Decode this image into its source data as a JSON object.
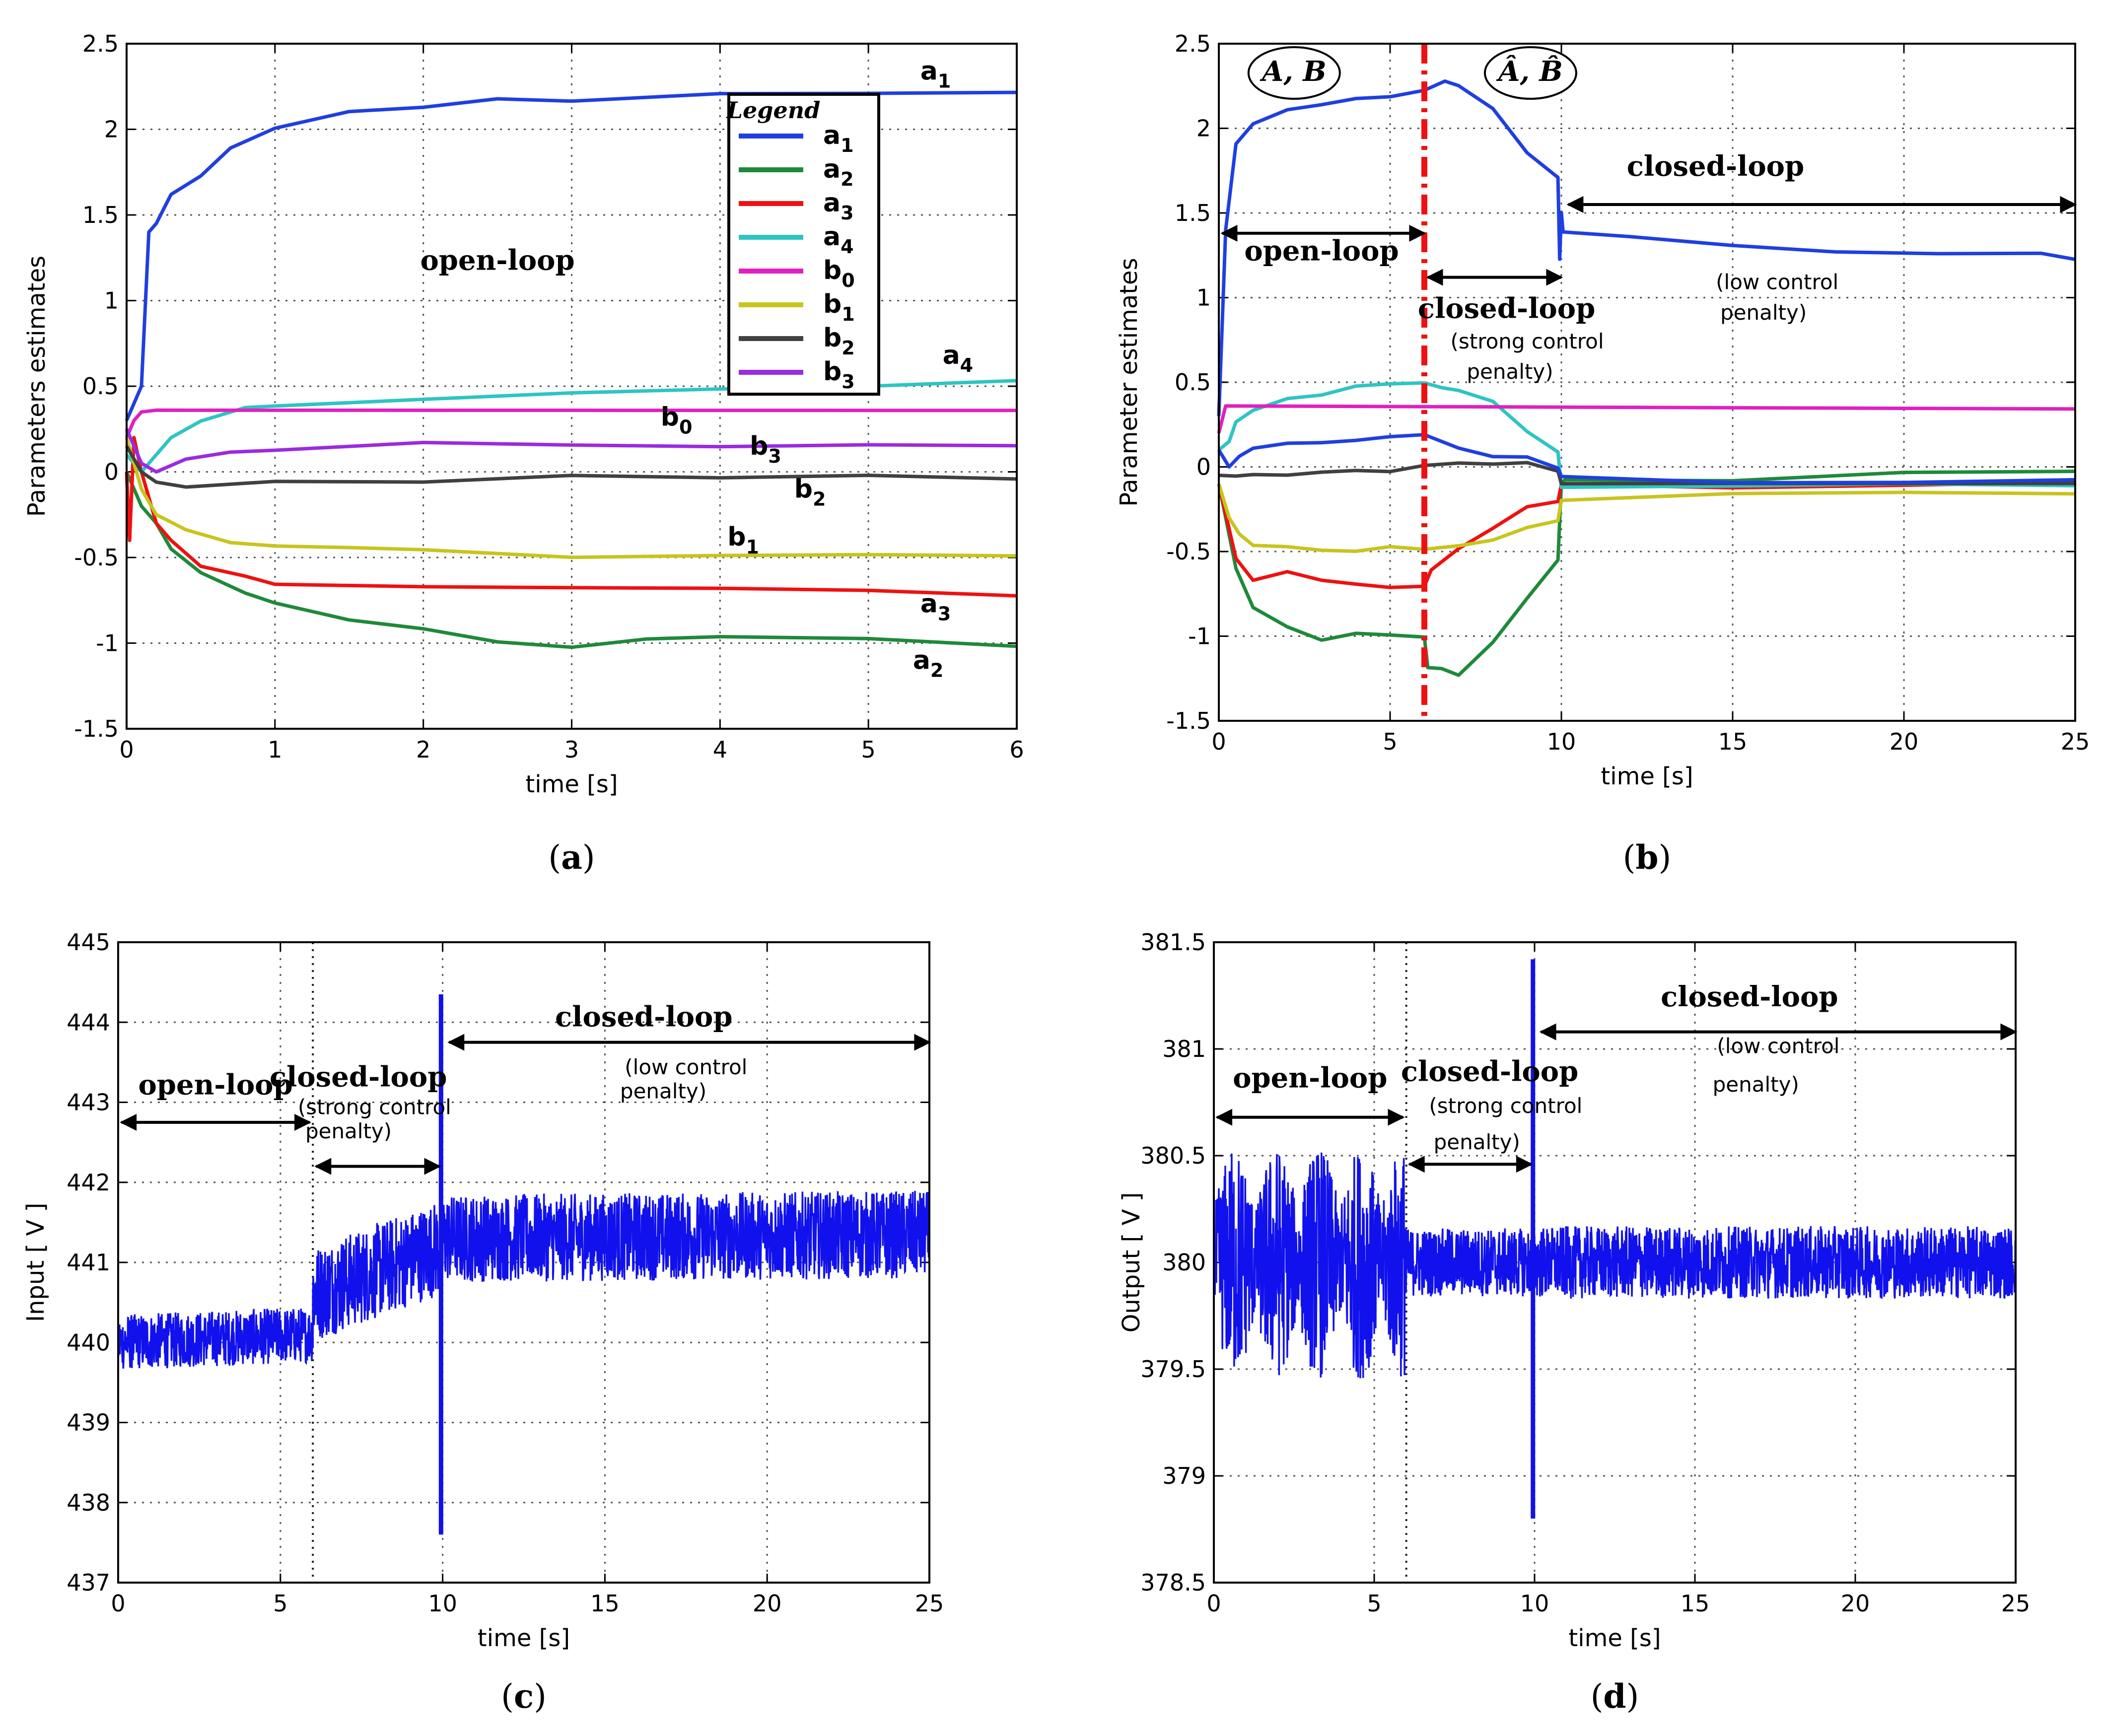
{
  "chart_data": [
    {
      "id": "a",
      "type": "line",
      "caption": "(a)",
      "xlabel": "time [s]",
      "ylabel": "Parameters estimates",
      "xlim": [
        0,
        6
      ],
      "ylim": [
        -1.5,
        2.5
      ],
      "xticks": [
        "0",
        "1",
        "2",
        "3",
        "4",
        "5",
        "6"
      ],
      "yticks": [
        "-1.5",
        "-1",
        "-0.5",
        "0",
        "0.5",
        "1",
        "1.5",
        "2",
        "2.5"
      ],
      "grid": true,
      "legend": {
        "title": "Legend",
        "entries": [
          {
            "base": "a",
            "sub": "1",
            "color": "#1f3fe0"
          },
          {
            "base": "a",
            "sub": "2",
            "color": "#1e8a3a"
          },
          {
            "base": "a",
            "sub": "3",
            "color": "#ee1111"
          },
          {
            "base": "a",
            "sub": "4",
            "color": "#2ec4c4"
          },
          {
            "base": "b",
            "sub": "0",
            "color": "#e020c0"
          },
          {
            "base": "b",
            "sub": "1",
            "color": "#c8c41e"
          },
          {
            "base": "b",
            "sub": "2",
            "color": "#404040"
          },
          {
            "base": "b",
            "sub": "3",
            "color": "#9a2be0"
          }
        ]
      },
      "annotations": [
        {
          "text": "open-loop",
          "x": 2.5,
          "y": 1.18
        }
      ],
      "series": [
        {
          "name": "a1",
          "base": "a",
          "sub": "1",
          "color": "#1f3fe0",
          "label_x": 5.35,
          "label_y": 2.29,
          "x": [
            0,
            0.1,
            0.15,
            0.2,
            0.3,
            0.5,
            0.7,
            1,
            1.5,
            2,
            2.5,
            3,
            4,
            5,
            6
          ],
          "y": [
            0.3,
            0.5,
            1.4,
            1.45,
            1.62,
            1.72,
            1.9,
            2.0,
            2.08,
            2.12,
            2.17,
            2.18,
            2.19,
            2.2,
            2.2
          ]
        },
        {
          "name": "a2",
          "base": "a",
          "sub": "2",
          "color": "#1e8a3a",
          "label_x": 5.3,
          "label_y": -1.15,
          "x": [
            0,
            0.1,
            0.2,
            0.3,
            0.5,
            0.8,
            1,
            1.5,
            2,
            2.5,
            3,
            3.5,
            4,
            5,
            6
          ],
          "y": [
            0.0,
            -0.2,
            -0.3,
            -0.45,
            -0.6,
            -0.7,
            -0.78,
            -0.85,
            -0.92,
            -0.98,
            -1.01,
            -0.99,
            -0.98,
            -0.99,
            -1.0
          ]
        },
        {
          "name": "a3",
          "base": "a",
          "sub": "3",
          "color": "#ee1111",
          "label_x": 5.35,
          "label_y": -0.82,
          "x": [
            0,
            0.02,
            0.05,
            0.1,
            0.2,
            0.3,
            0.5,
            0.8,
            1,
            2,
            3,
            4,
            5,
            6
          ],
          "y": [
            0,
            -0.4,
            0.2,
            0.0,
            -0.3,
            -0.4,
            -0.55,
            -0.62,
            -0.65,
            -0.66,
            -0.67,
            -0.7,
            -0.71,
            -0.72
          ]
        },
        {
          "name": "a4",
          "base": "a",
          "sub": "4",
          "color": "#2ec4c4",
          "label_x": 5.5,
          "label_y": 0.63,
          "x": [
            0,
            0.1,
            0.2,
            0.3,
            0.5,
            0.8,
            1,
            2,
            3,
            4,
            5,
            6
          ],
          "y": [
            0.1,
            0.0,
            0.1,
            0.2,
            0.3,
            0.36,
            0.4,
            0.44,
            0.47,
            0.49,
            0.5,
            0.51
          ]
        },
        {
          "name": "b0",
          "base": "b",
          "sub": "0",
          "color": "#e020c0",
          "label_x": 3.6,
          "label_y": 0.27,
          "x": [
            0,
            0.05,
            0.1,
            0.2,
            6
          ],
          "y": [
            0.2,
            0.3,
            0.35,
            0.36,
            0.36
          ]
        },
        {
          "name": "b1",
          "base": "b",
          "sub": "1",
          "color": "#c8c41e",
          "label_x": 4.05,
          "label_y": -0.43,
          "x": [
            0,
            0.1,
            0.2,
            0.4,
            0.7,
            1,
            1.5,
            2,
            3,
            4,
            5,
            6
          ],
          "y": [
            0.2,
            -0.1,
            -0.25,
            -0.35,
            -0.4,
            -0.43,
            -0.46,
            -0.47,
            -0.49,
            -0.49,
            -0.5,
            -0.5
          ]
        },
        {
          "name": "b2",
          "base": "b",
          "sub": "2",
          "color": "#404040",
          "label_x": 4.5,
          "label_y": -0.15,
          "x": [
            0,
            0.1,
            0.2,
            0.4,
            1,
            2,
            3,
            4,
            5,
            6
          ],
          "y": [
            0.15,
            0.0,
            -0.06,
            -0.07,
            -0.06,
            -0.04,
            -0.03,
            -0.03,
            -0.03,
            -0.03
          ]
        },
        {
          "name": "b3",
          "base": "b",
          "sub": "3",
          "color": "#9a2be0",
          "label_x": 4.2,
          "label_y": 0.1,
          "x": [
            0,
            0.1,
            0.2,
            0.4,
            0.7,
            1,
            2,
            3,
            4,
            5,
            6
          ],
          "y": [
            0.25,
            0.05,
            0.0,
            0.08,
            0.12,
            0.13,
            0.15,
            0.16,
            0.17,
            0.17,
            0.17
          ]
        }
      ]
    },
    {
      "id": "b",
      "type": "line",
      "caption": "(b)",
      "xlabel": "time [s]",
      "ylabel": "Parameter estimates",
      "xlim": [
        0,
        25
      ],
      "ylim": [
        -1.5,
        2.5
      ],
      "xticks": [
        "0",
        "5",
        "10",
        "15",
        "20",
        "25"
      ],
      "yticks": [
        "-1.5",
        "-1",
        "-0.5",
        "0",
        "0.5",
        "1",
        "1.5",
        "2",
        "2.5"
      ],
      "grid": true,
      "switch_line_x": 6,
      "annotations": [
        {
          "text": "A, B",
          "x": 2.2,
          "y": 2.28,
          "style": "oval"
        },
        {
          "text": "Â, B̂",
          "x": 9.1,
          "y": 2.28,
          "style": "oval"
        },
        {
          "text": "open-loop",
          "x": 3.0,
          "y": 1.22,
          "style": "bold"
        },
        {
          "text": "closed-loop",
          "x": 8.4,
          "y": 0.88,
          "style": "bold"
        },
        {
          "text": "(strong control",
          "x": 9.0,
          "y": 0.7,
          "style": "small"
        },
        {
          "text": "penalty)",
          "x": 8.5,
          "y": 0.52,
          "style": "small"
        },
        {
          "text": "closed-loop",
          "x": 14.5,
          "y": 1.72,
          "style": "bold"
        },
        {
          "text": "(low control",
          "x": 16.3,
          "y": 1.05,
          "style": "small"
        },
        {
          "text": "penalty)",
          "x": 15.9,
          "y": 0.87,
          "style": "small"
        }
      ],
      "arrows": [
        {
          "x1": 0.1,
          "x2": 6.0,
          "y": 1.38
        },
        {
          "x1": 6.1,
          "x2": 10.0,
          "y": 1.12
        },
        {
          "x1": 10.2,
          "x2": 25.0,
          "y": 1.55
        }
      ],
      "series": [
        {
          "name": "a1",
          "color": "#1f3fe0",
          "x": [
            0,
            0.2,
            0.5,
            1,
            2,
            3,
            4,
            5,
            6,
            6.6,
            7,
            8,
            9,
            9.9,
            9.95,
            10,
            10.05,
            12,
            15,
            18,
            21,
            24,
            25
          ],
          "y": [
            0.3,
            1.4,
            1.9,
            2.05,
            2.12,
            2.15,
            2.18,
            2.2,
            2.21,
            2.28,
            2.25,
            2.1,
            1.85,
            1.7,
            1.25,
            1.5,
            1.39,
            1.36,
            1.3,
            1.28,
            1.26,
            1.24,
            1.24
          ]
        },
        {
          "name": "a2",
          "color": "#1e8a3a",
          "x": [
            0,
            0.5,
            1,
            2,
            3,
            4,
            5,
            6,
            6.1,
            6.5,
            7,
            8,
            9,
            9.9,
            10,
            10.1,
            15,
            20,
            25
          ],
          "y": [
            -0.1,
            -0.6,
            -0.85,
            -0.95,
            -1.0,
            -0.99,
            -1.0,
            -1.0,
            -1.2,
            -1.2,
            -1.22,
            -1.05,
            -0.8,
            -0.55,
            -0.08,
            -0.08,
            -0.09,
            -0.05,
            -0.03
          ]
        },
        {
          "name": "a3",
          "color": "#ee1111",
          "x": [
            0,
            0.5,
            1,
            2,
            3,
            4,
            5,
            6,
            6.2,
            7,
            8,
            9,
            9.9,
            10,
            15,
            20,
            25
          ],
          "y": [
            -0.1,
            -0.55,
            -0.65,
            -0.64,
            -0.65,
            -0.68,
            -0.71,
            -0.72,
            -0.6,
            -0.5,
            -0.35,
            -0.25,
            -0.2,
            -0.1,
            -0.1,
            -0.1,
            -0.1
          ]
        },
        {
          "name": "a4",
          "color": "#2ec4c4",
          "x": [
            0,
            0.3,
            0.5,
            1,
            2,
            3,
            4,
            5,
            6,
            6.5,
            7,
            8,
            9,
            9.9,
            10,
            15,
            20,
            25
          ],
          "y": [
            0.1,
            0.15,
            0.25,
            0.32,
            0.38,
            0.42,
            0.46,
            0.5,
            0.52,
            0.48,
            0.45,
            0.38,
            0.2,
            0.08,
            -0.12,
            -0.12,
            -0.12,
            -0.12
          ]
        },
        {
          "name": "b0",
          "color": "#e020c0",
          "x": [
            0,
            0.2,
            25
          ],
          "y": [
            0.2,
            0.36,
            0.36
          ]
        },
        {
          "name": "b1",
          "color": "#c8c41e",
          "x": [
            0,
            0.3,
            0.6,
            1,
            2,
            3,
            4,
            5,
            6,
            7,
            8,
            9,
            9.9,
            10,
            15,
            20,
            25
          ],
          "y": [
            -0.1,
            -0.3,
            -0.4,
            -0.45,
            -0.48,
            -0.49,
            -0.49,
            -0.48,
            -0.48,
            -0.46,
            -0.42,
            -0.35,
            -0.3,
            -0.2,
            -0.18,
            -0.16,
            -0.16
          ]
        },
        {
          "name": "b2",
          "color": "#404040",
          "x": [
            0,
            0.5,
            1,
            2,
            3,
            4,
            5,
            6,
            7,
            8,
            9,
            9.9,
            10,
            15,
            20,
            25
          ],
          "y": [
            -0.05,
            -0.07,
            -0.06,
            -0.04,
            -0.03,
            -0.02,
            -0.01,
            -0.01,
            0.03,
            0.04,
            0.02,
            -0.02,
            -0.08,
            -0.08,
            -0.08,
            -0.08
          ]
        },
        {
          "name": "b3",
          "color": "#1f3fe0",
          "x": [
            0,
            0.3,
            0.6,
            1,
            2,
            3,
            4,
            5,
            6,
            7,
            8,
            9,
            9.9,
            10,
            15,
            20,
            25
          ],
          "y": [
            0.1,
            0.0,
            0.05,
            0.1,
            0.13,
            0.15,
            0.17,
            0.18,
            0.17,
            0.12,
            0.08,
            0.04,
            0.0,
            -0.08,
            -0.08,
            -0.08,
            -0.08
          ]
        }
      ]
    },
    {
      "id": "c",
      "type": "line",
      "caption": "(c)",
      "xlabel": "time [s]",
      "ylabel": "Input [ V ]",
      "xlim": [
        0,
        25
      ],
      "ylim": [
        437,
        445
      ],
      "xticks": [
        "0",
        "5",
        "10",
        "15",
        "20",
        "25"
      ],
      "yticks": [
        "437",
        "438",
        "439",
        "440",
        "441",
        "442",
        "443",
        "444",
        "445"
      ],
      "grid": true,
      "extra_vlines": [
        6
      ],
      "annotations": [
        {
          "text": "open-loop",
          "x": 3.0,
          "y": 443.1,
          "style": "bold"
        },
        {
          "text": "closed-loop",
          "x": 7.4,
          "y": 443.2,
          "style": "bold"
        },
        {
          "text": "(strong control",
          "x": 7.9,
          "y": 442.85,
          "style": "small"
        },
        {
          "text": "penalty)",
          "x": 7.1,
          "y": 442.55,
          "style": "small"
        },
        {
          "text": "closed-loop",
          "x": 16.2,
          "y": 443.95,
          "style": "bold"
        },
        {
          "text": "(low control",
          "x": 17.5,
          "y": 443.35,
          "style": "small"
        },
        {
          "text": "penalty)",
          "x": 16.8,
          "y": 443.05,
          "style": "small"
        }
      ],
      "arrows": [
        {
          "x1": 0.1,
          "x2": 5.9,
          "y": 442.75
        },
        {
          "x1": 6.1,
          "x2": 9.9,
          "y": 442.2
        },
        {
          "x1": 10.2,
          "x2": 25.0,
          "y": 443.75
        }
      ],
      "noise_signal": {
        "color": "#1111ee",
        "segments": [
          {
            "x_start": 0,
            "x_end": 6,
            "mean_start": 440.0,
            "mean_end": 440.1,
            "amplitude": 0.35
          },
          {
            "x_start": 6,
            "x_end": 10,
            "mean_start": 440.6,
            "mean_end": 441.2,
            "amplitude": 0.6
          },
          {
            "x_start": 10,
            "x_end": 25,
            "mean_start": 441.3,
            "mean_end": 441.35,
            "amplitude": 0.55
          }
        ],
        "spike": {
          "x": 9.95,
          "y_max": 444.35,
          "y_min": 437.6
        }
      }
    },
    {
      "id": "d",
      "type": "line",
      "caption": "(d)",
      "xlabel": "time [s]",
      "ylabel": "Output [ V ]",
      "xlim": [
        0,
        25
      ],
      "ylim": [
        378.5,
        381.5
      ],
      "xticks": [
        "0",
        "5",
        "10",
        "15",
        "20",
        "25"
      ],
      "yticks": [
        "378.5",
        "379",
        "379.5",
        "380",
        "380.5",
        "381",
        "381.5"
      ],
      "grid": true,
      "extra_vlines": [
        6
      ],
      "annotations": [
        {
          "text": "open-loop",
          "x": 3.0,
          "y": 380.82,
          "style": "bold"
        },
        {
          "text": "closed-loop",
          "x": 8.6,
          "y": 380.85,
          "style": "bold"
        },
        {
          "text": "(strong control",
          "x": 9.1,
          "y": 380.7,
          "style": "small"
        },
        {
          "text": "penalty)",
          "x": 8.2,
          "y": 380.53,
          "style": "small"
        },
        {
          "text": "closed-loop",
          "x": 16.7,
          "y": 381.2,
          "style": "bold"
        },
        {
          "text": "(low control",
          "x": 17.6,
          "y": 380.98,
          "style": "small"
        },
        {
          "text": "penalty)",
          "x": 16.9,
          "y": 380.8,
          "style": "small"
        }
      ],
      "arrows": [
        {
          "x1": 0.1,
          "x2": 5.9,
          "y": 380.68
        },
        {
          "x1": 6.1,
          "x2": 9.9,
          "y": 380.46
        },
        {
          "x1": 10.2,
          "x2": 25.0,
          "y": 381.08
        }
      ],
      "noise_signal": {
        "color": "#1111ee",
        "segments": [
          {
            "x_start": 0,
            "x_end": 6,
            "mean_start": 380.0,
            "mean_end": 380.0,
            "amplitude": 0.55,
            "modulated": true
          },
          {
            "x_start": 6,
            "x_end": 10,
            "mean_start": 380.0,
            "mean_end": 380.0,
            "amplitude": 0.16
          },
          {
            "x_start": 10,
            "x_end": 25,
            "mean_start": 380.0,
            "mean_end": 380.0,
            "amplitude": 0.17
          }
        ],
        "spike": {
          "x": 9.95,
          "y_max": 381.42,
          "y_min": 378.8
        }
      }
    }
  ]
}
